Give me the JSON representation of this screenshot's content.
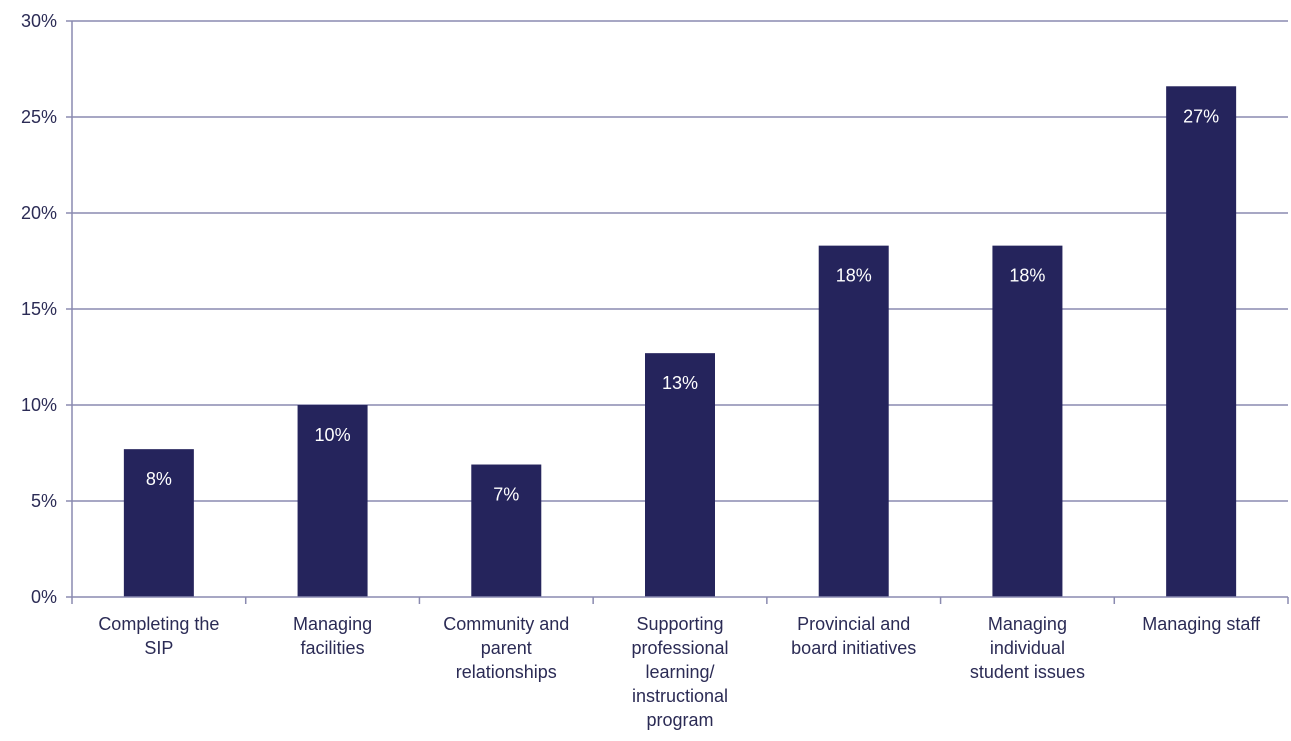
{
  "chart_data": {
    "type": "bar",
    "categories": [
      [
        "Completing the",
        "SIP"
      ],
      [
        "Managing",
        "facilities"
      ],
      [
        "Community and",
        "parent",
        "relationships"
      ],
      [
        "Supporting",
        "professional",
        "learning/",
        "instructional",
        "program"
      ],
      [
        "Provincial and",
        "board initiatives"
      ],
      [
        "Managing",
        "individual",
        "student issues"
      ],
      [
        "Managing staff"
      ]
    ],
    "values": [
      7.7,
      10.0,
      6.9,
      12.7,
      18.3,
      18.3,
      26.6
    ],
    "data_labels": [
      "8%",
      "10%",
      "7%",
      "13%",
      "18%",
      "18%",
      "27%"
    ],
    "y_ticks": [
      0,
      5,
      10,
      15,
      20,
      25,
      30
    ],
    "y_tick_labels": [
      "0%",
      "5%",
      "10%",
      "15%",
      "20%",
      "25%",
      "30%"
    ],
    "ylim": [
      0,
      30
    ],
    "title": "",
    "xlabel": "",
    "ylabel": "",
    "grid": true,
    "bar_color": "#25245c",
    "grid_color": "#8a8ab0",
    "text_color": "#2b2b55"
  }
}
